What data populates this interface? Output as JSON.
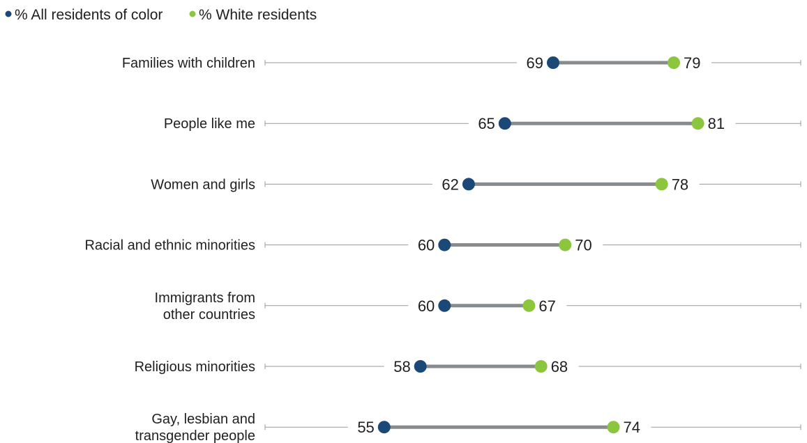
{
  "chart_data": {
    "type": "dumbbell",
    "title": "",
    "xlabel": "",
    "ylabel": "",
    "xlim": [
      0,
      100
    ],
    "grid": false,
    "legend_placement": "top-left",
    "categories": [
      [
        "Families with children"
      ],
      [
        "People like me"
      ],
      [
        "Women and girls"
      ],
      [
        "Racial and ethnic minorities"
      ],
      [
        "Immigrants from",
        "other countries"
      ],
      [
        "Religious minorities"
      ],
      [
        "Gay, lesbian and",
        "transgender people"
      ]
    ],
    "series": [
      {
        "name": "% All residents of color",
        "color": "#1b4877",
        "values": [
          69,
          65,
          62,
          60,
          60,
          58,
          55
        ]
      },
      {
        "name": "% White residents",
        "color": "#8cc63f",
        "values": [
          79,
          81,
          78,
          70,
          67,
          68,
          74
        ]
      }
    ],
    "connector_color": "#888b8d",
    "axis_line_color": "#9a9a9a"
  }
}
